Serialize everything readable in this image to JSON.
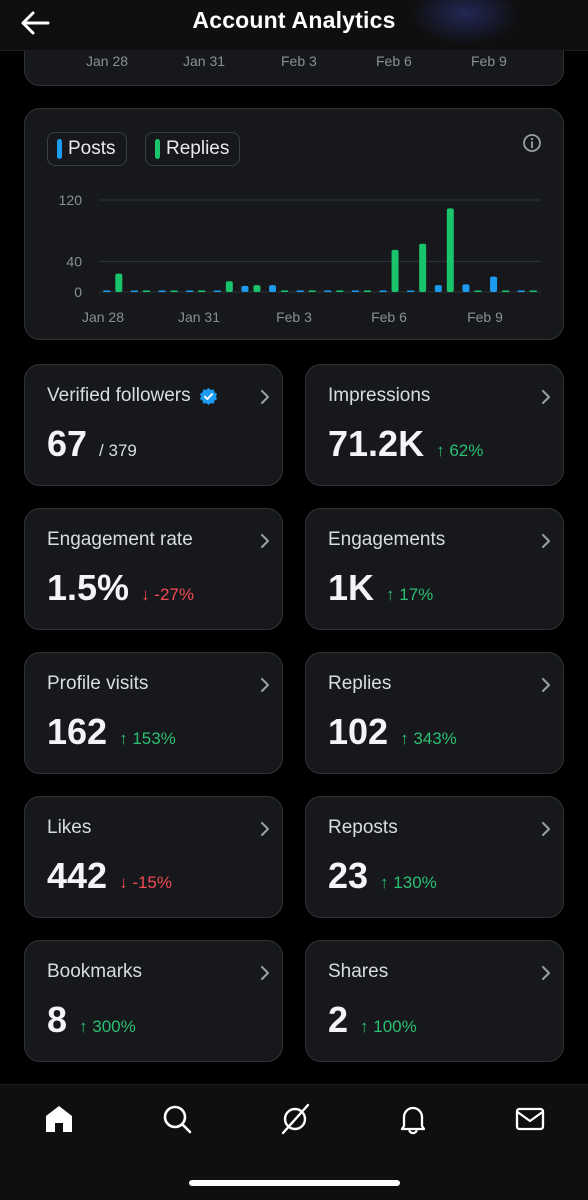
{
  "header": {
    "title": "Account Analytics"
  },
  "top_card": {
    "x_labels": [
      "Jan 28",
      "Jan 31",
      "Feb 3",
      "Feb 6",
      "Feb 9"
    ]
  },
  "chart_data": {
    "type": "bar",
    "legend": [
      {
        "name": "Posts",
        "color": "#1d9bf0"
      },
      {
        "name": "Replies",
        "color": "#19c46b"
      }
    ],
    "y_ticks": [
      120,
      40,
      0
    ],
    "ylim": [
      0,
      130
    ],
    "x_tick_labels": [
      "Jan 28",
      "Jan 31",
      "Feb 3",
      "Feb 6",
      "Feb 9"
    ],
    "grid": true,
    "series": [
      {
        "name": "Posts",
        "color": "#1d9bf0",
        "values": [
          1,
          0,
          0,
          0,
          1,
          8,
          9,
          2,
          0,
          0,
          1,
          1,
          9,
          10,
          20,
          1
        ]
      },
      {
        "name": "Replies",
        "color": "#19c46b",
        "values": [
          24,
          1,
          1,
          1,
          14,
          9,
          2,
          2,
          2,
          2,
          55,
          63,
          109,
          2,
          0,
          0
        ]
      }
    ]
  },
  "metrics": [
    {
      "title": "Verified followers",
      "value": "67",
      "sub": "/ 379",
      "delta": "",
      "dir": "",
      "verified": true
    },
    {
      "title": "Impressions",
      "value": "71.2K",
      "sub": "",
      "delta": "62%",
      "dir": "up",
      "verified": false
    },
    {
      "title": "Engagement rate",
      "value": "1.5%",
      "sub": "",
      "delta": "-27%",
      "dir": "down",
      "verified": false
    },
    {
      "title": "Engagements",
      "value": "1K",
      "sub": "",
      "delta": "17%",
      "dir": "up",
      "verified": false
    },
    {
      "title": "Profile visits",
      "value": "162",
      "sub": "",
      "delta": "153%",
      "dir": "up",
      "verified": false
    },
    {
      "title": "Replies",
      "value": "102",
      "sub": "",
      "delta": "343%",
      "dir": "up",
      "verified": false
    },
    {
      "title": "Likes",
      "value": "442",
      "sub": "",
      "delta": "-15%",
      "dir": "down",
      "verified": false
    },
    {
      "title": "Reposts",
      "value": "23",
      "sub": "",
      "delta": "130%",
      "dir": "up",
      "verified": false
    },
    {
      "title": "Bookmarks",
      "value": "8",
      "sub": "",
      "delta": "300%",
      "dir": "up",
      "verified": false
    },
    {
      "title": "Shares",
      "value": "2",
      "sub": "",
      "delta": "100%",
      "dir": "up",
      "verified": false
    }
  ],
  "nav": [
    {
      "name": "home-icon",
      "active": true
    },
    {
      "name": "search-icon",
      "active": false
    },
    {
      "name": "grok-icon",
      "active": false
    },
    {
      "name": "notifications-bell-icon",
      "active": false
    },
    {
      "name": "messages-envelope-icon",
      "active": false
    }
  ],
  "colors": {
    "up": "#2bbf72",
    "down": "#f04a52",
    "card": "#16181c",
    "verified": "#1d9bf0"
  }
}
